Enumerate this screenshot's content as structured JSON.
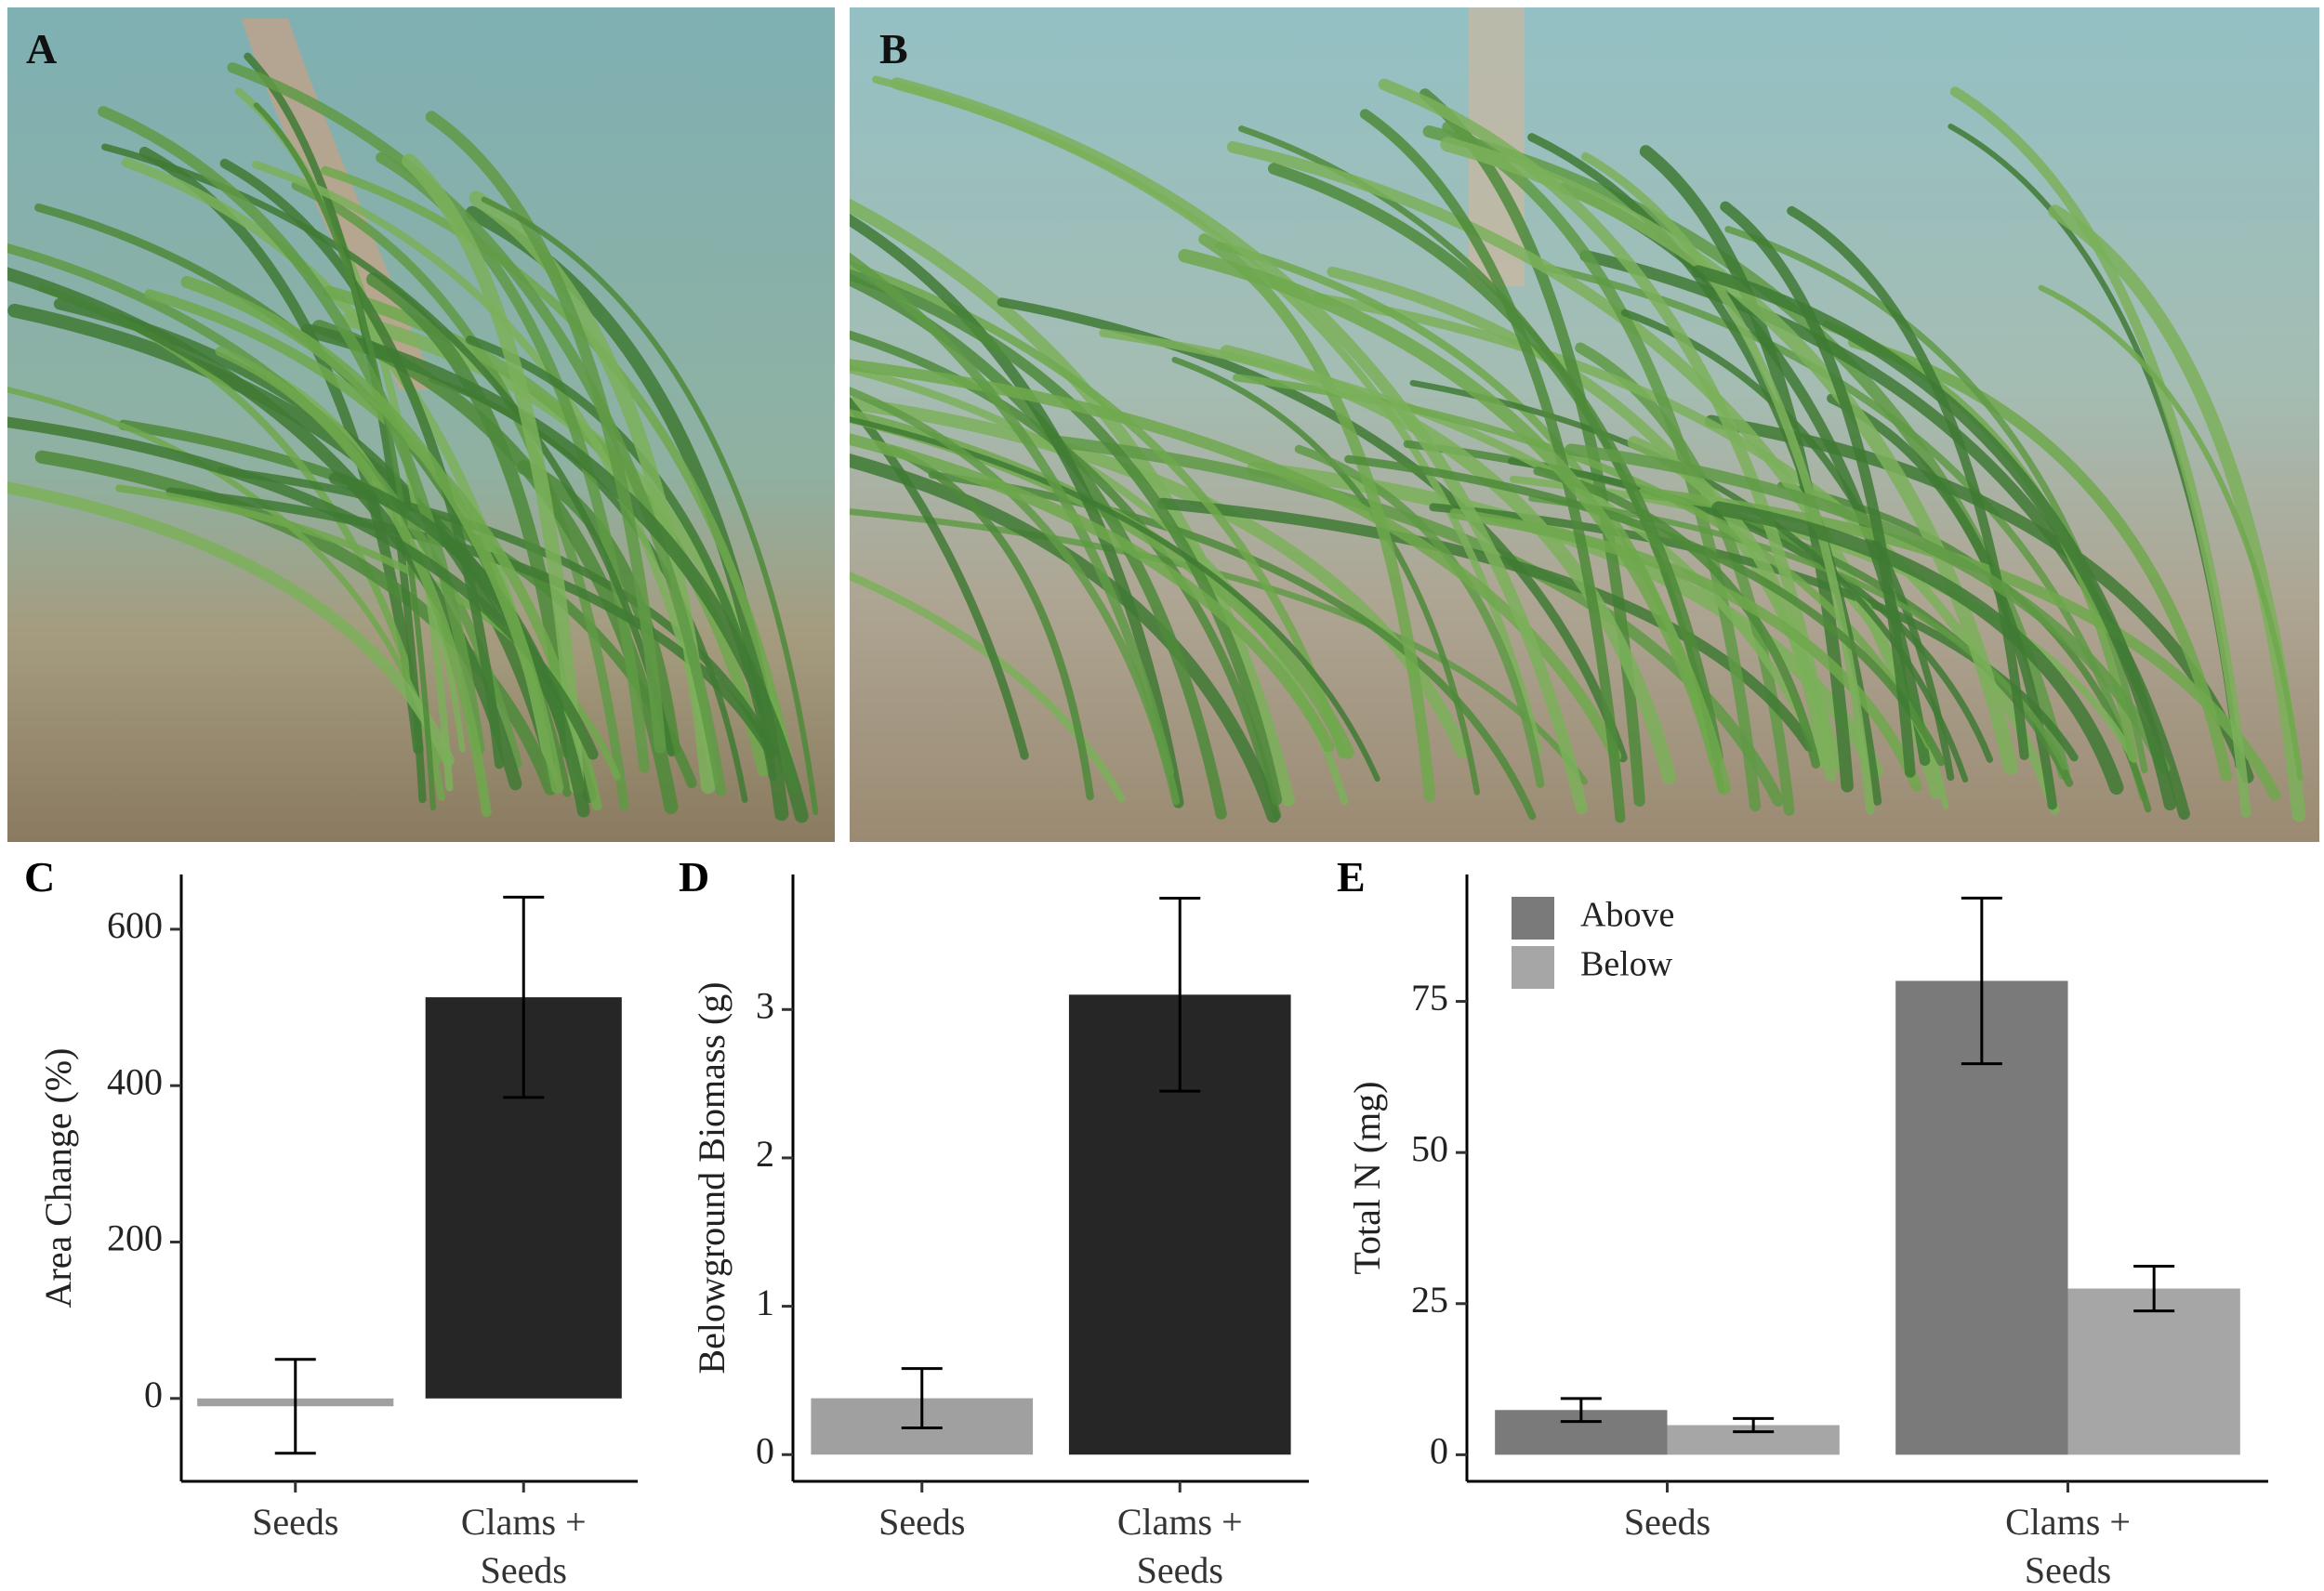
{
  "photos": [
    {
      "label": "A"
    },
    {
      "label": "B"
    }
  ],
  "chart_data": [
    {
      "type": "bar",
      "panel_label": "C",
      "ylabel": "Area Change (%)",
      "categories": [
        "Seeds",
        "Clams + Seeds"
      ],
      "values": [
        -10,
        513
      ],
      "errors": [
        60,
        128
      ],
      "colors": [
        "#a0a0a0",
        "#262626"
      ],
      "ylim": [
        -106,
        670
      ],
      "yticks": [
        0,
        200,
        400,
        600
      ]
    },
    {
      "type": "bar",
      "panel_label": "D",
      "ylabel": "Belowground Biomass (g)",
      "categories": [
        "Seeds",
        "Clams + Seeds"
      ],
      "values": [
        0.38,
        3.1
      ],
      "errors": [
        0.2,
        0.65
      ],
      "colors": [
        "#a0a0a0",
        "#262626"
      ],
      "ylim": [
        -0.18,
        3.91
      ],
      "yticks": [
        0,
        1,
        2,
        3
      ]
    },
    {
      "type": "bar",
      "panel_label": "E",
      "ylabel": "Total N (mg)",
      "categories": [
        "Seeds",
        "Clams + Seeds"
      ],
      "series": [
        {
          "name": "Above",
          "color": "#7a7a7a",
          "values": [
            7.4,
            78.4
          ],
          "errors": [
            1.9,
            13.7
          ]
        },
        {
          "name": "Below",
          "color": "#a6a6a6",
          "values": [
            4.9,
            27.5
          ],
          "errors": [
            1.1,
            3.7
          ]
        }
      ],
      "ylim": [
        -4.4,
        96
      ],
      "yticks": [
        0,
        25,
        50,
        75
      ],
      "legend": "top-left"
    }
  ]
}
